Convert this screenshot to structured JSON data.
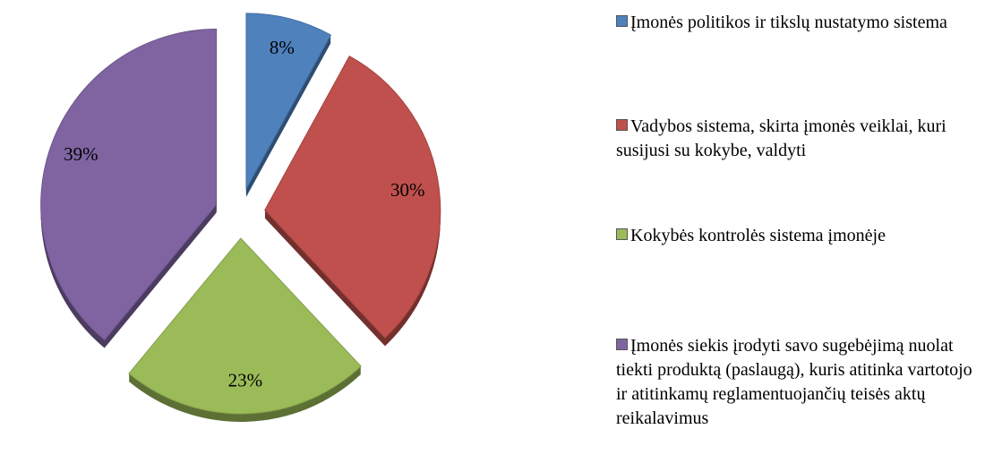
{
  "chart_data": {
    "type": "pie",
    "categories": [
      "Įmonės politikos ir tikslų nustatymo sistema",
      "Vadybos sistema, skirta įmonės veiklai, kuri susijusi su kokybe, valdyti",
      "Kokybės kontrolės sistema įmonėje",
      "Įmonės siekis įrodyti savo sugebėjimą nuolat tiekti produktą (paslaugą), kuris atitinka vartotojo ir atitinkamų reglamentuojančių teisės aktų reikalavimus"
    ],
    "values": [
      8,
      30,
      23,
      39
    ],
    "value_labels": [
      "8%",
      "30%",
      "23%",
      "39%"
    ],
    "colors": [
      "#4f81bd",
      "#c0504d",
      "#9bbb59",
      "#8064a2"
    ],
    "legend": "right"
  }
}
